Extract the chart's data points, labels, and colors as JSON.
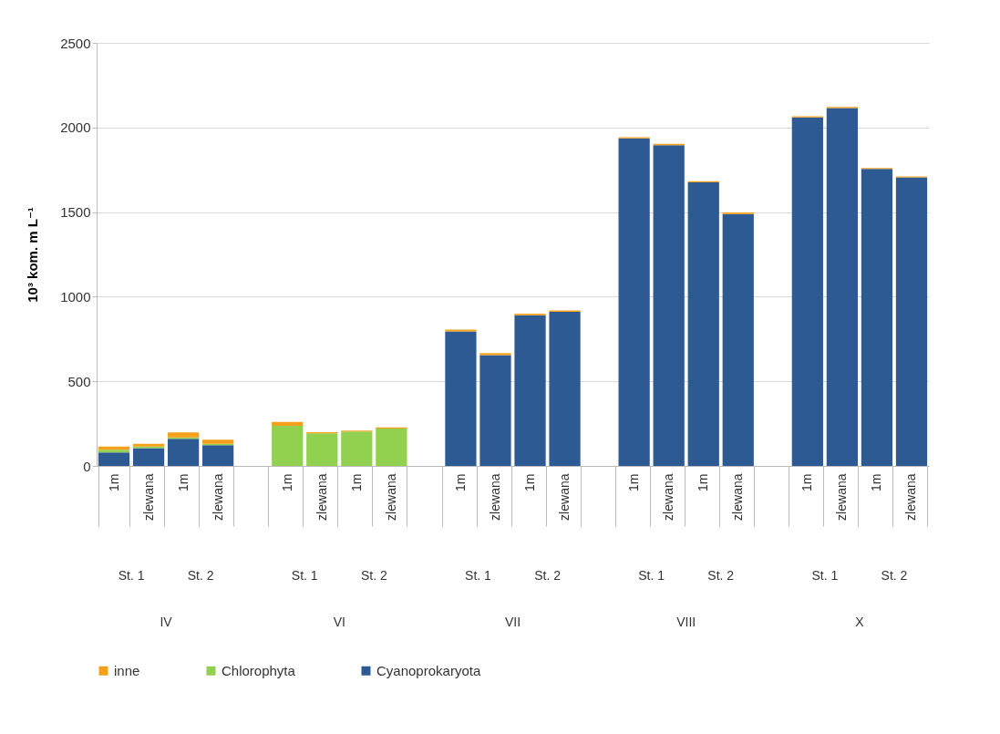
{
  "chart_data": {
    "type": "bar",
    "stacked": true,
    "ylabel": "10³ kom. m L⁻¹",
    "categories": [
      "1m",
      "zlewana",
      "1m",
      "zlewana",
      null,
      "1m",
      "zlewana",
      "1m",
      "zlewana",
      null,
      "1m",
      "zlewana",
      "1m",
      "zlewana",
      null,
      "1m",
      "zlewana",
      "1m",
      "zlewana",
      null,
      "1m",
      "zlewana",
      "1m",
      "zlewana"
    ],
    "series": [
      {
        "name": "Cyanoprokaryota",
        "color": "#2e5a94",
        "values": [
          80,
          105,
          160,
          122,
          null,
          0,
          0,
          0,
          0,
          null,
          795,
          655,
          890,
          910,
          null,
          1935,
          1895,
          1675,
          1488,
          null,
          2060,
          2115,
          1755,
          1705
        ]
      },
      {
        "name": "Chlorophyta",
        "color": "#92d050",
        "values": [
          15,
          10,
          8,
          8,
          null,
          237,
          193,
          203,
          221,
          null,
          0,
          0,
          0,
          0,
          null,
          0,
          0,
          0,
          0,
          null,
          0,
          0,
          0,
          0
        ]
      },
      {
        "name": "inne",
        "color": "#f5a01a",
        "values": [
          20,
          15,
          30,
          25,
          null,
          23,
          6,
          6,
          6,
          null,
          10,
          12,
          10,
          8,
          null,
          8,
          8,
          7,
          10,
          null,
          6,
          6,
          6,
          6
        ]
      }
    ],
    "ylim": [
      0,
      2500
    ],
    "yticks": [
      0,
      500,
      1000,
      1500,
      2000,
      2500
    ],
    "grid": "y",
    "legend": "bottom",
    "annotations": [
      "St. 1",
      "St. 2",
      "St. 1",
      "St. 2",
      "St. 1",
      "St. 2",
      "St. 1",
      "St. 2",
      "St. 1",
      "St. 2",
      "IV",
      "VI",
      "VII",
      "VIII",
      "X"
    ]
  }
}
